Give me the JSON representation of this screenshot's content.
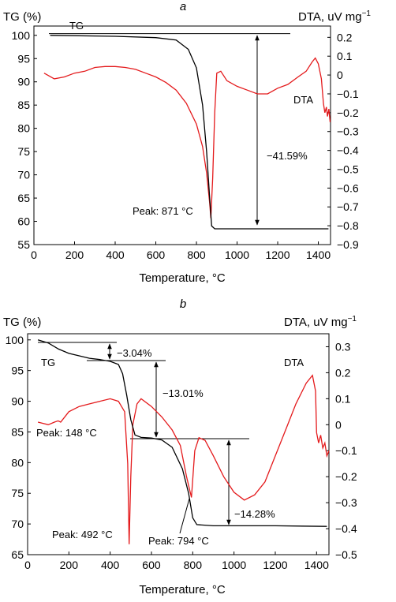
{
  "chart_data": [
    {
      "type": "line",
      "panel_label": "a",
      "xlabel": "Temperature, °C",
      "ylabel_left": "TG (%)",
      "ylabel_right": "DTA, uV mg",
      "ylabel_right_exp": "−1",
      "x_ticks": [
        "0",
        "200",
        "400",
        "600",
        "800",
        "1000",
        "1200",
        "1400"
      ],
      "y_left_ticks": [
        "100",
        "95",
        "90",
        "85",
        "80",
        "75",
        "70",
        "65",
        "60",
        "55"
      ],
      "y_right_ticks": [
        "0.2",
        "0.1",
        "0",
        "−0.1",
        "−0.2",
        "−0.3",
        "−0.4",
        "−0.5",
        "−0.6",
        "−0.7",
        "−0.8",
        "−0.9"
      ],
      "xlim": [
        0,
        1460
      ],
      "ylim_left": [
        55,
        102
      ],
      "ylim_right": [
        -0.9,
        0.26
      ],
      "series": [
        {
          "name": "TG",
          "axis": "left",
          "color": "#000000",
          "points": [
            [
              80,
              100
            ],
            [
              400,
              99.8
            ],
            [
              600,
              99.5
            ],
            [
              700,
              99
            ],
            [
              760,
              97
            ],
            [
              800,
              93
            ],
            [
              830,
              85
            ],
            [
              850,
              75
            ],
            [
              865,
              65
            ],
            [
              875,
              59
            ],
            [
              890,
              58.4
            ],
            [
              1000,
              58.4
            ],
            [
              1200,
              58.4
            ],
            [
              1450,
              58.4
            ]
          ]
        },
        {
          "name": "DTA",
          "axis": "right",
          "color": "#e41a1c",
          "points": [
            [
              50,
              0.01
            ],
            [
              100,
              -0.02
            ],
            [
              150,
              -0.01
            ],
            [
              200,
              0.01
            ],
            [
              250,
              0.02
            ],
            [
              300,
              0.04
            ],
            [
              350,
              0.045
            ],
            [
              400,
              0.045
            ],
            [
              450,
              0.04
            ],
            [
              500,
              0.03
            ],
            [
              550,
              0.01
            ],
            [
              600,
              -0.01
            ],
            [
              650,
              -0.04
            ],
            [
              700,
              -0.08
            ],
            [
              750,
              -0.15
            ],
            [
              800,
              -0.26
            ],
            [
              830,
              -0.38
            ],
            [
              850,
              -0.52
            ],
            [
              865,
              -0.68
            ],
            [
              871,
              -0.76
            ],
            [
              880,
              -0.55
            ],
            [
              890,
              -0.2
            ],
            [
              900,
              0.01
            ],
            [
              920,
              0.02
            ],
            [
              950,
              -0.03
            ],
            [
              1000,
              -0.06
            ],
            [
              1050,
              -0.08
            ],
            [
              1100,
              -0.1
            ],
            [
              1150,
              -0.1
            ],
            [
              1200,
              -0.07
            ],
            [
              1250,
              -0.05
            ],
            [
              1300,
              -0.01
            ],
            [
              1340,
              0.02
            ],
            [
              1370,
              0.07
            ],
            [
              1385,
              0.09
            ],
            [
              1400,
              0.06
            ],
            [
              1415,
              -0.02
            ],
            [
              1425,
              -0.15
            ],
            [
              1432,
              -0.2
            ],
            [
              1440,
              -0.17
            ],
            [
              1445,
              -0.22
            ],
            [
              1452,
              -0.18
            ],
            [
              1458,
              -0.25
            ]
          ]
        }
      ],
      "annotations": [
        {
          "text": "TG"
        },
        {
          "text": "DTA"
        },
        {
          "text": "Peak: 871 °C"
        },
        {
          "text": "−41.59%"
        }
      ]
    },
    {
      "type": "line",
      "panel_label": "b",
      "xlabel": "Temperature, °C",
      "ylabel_left": "TG (%)",
      "ylabel_right": "DTA, uV mg",
      "ylabel_right_exp": "−1",
      "x_ticks": [
        "0",
        "200",
        "400",
        "600",
        "800",
        "1000",
        "1200",
        "1400"
      ],
      "y_left_ticks": [
        "100",
        "95",
        "90",
        "85",
        "80",
        "75",
        "70",
        "65"
      ],
      "y_right_ticks": [
        "0.3",
        "0.2",
        "0.1",
        "0",
        "−0.1",
        "−0.2",
        "−0.3",
        "−0.4",
        "−0.5"
      ],
      "xlim": [
        0,
        1460
      ],
      "ylim_left": [
        65,
        101
      ],
      "ylim_right": [
        -0.5,
        0.35
      ],
      "series": [
        {
          "name": "TG",
          "axis": "left",
          "color": "#000000",
          "points": [
            [
              50,
              100
            ],
            [
              100,
              99.5
            ],
            [
              150,
              98.5
            ],
            [
              200,
              97.8
            ],
            [
              250,
              97.4
            ],
            [
              300,
              97
            ],
            [
              350,
              96.8
            ],
            [
              400,
              96.5
            ],
            [
              440,
              96
            ],
            [
              460,
              94.5
            ],
            [
              480,
              91
            ],
            [
              500,
              87
            ],
            [
              520,
              84.5
            ],
            [
              550,
              84.1
            ],
            [
              600,
              84
            ],
            [
              650,
              83.7
            ],
            [
              700,
              82.5
            ],
            [
              750,
              79
            ],
            [
              780,
              75
            ],
            [
              800,
              71
            ],
            [
              820,
              69.9
            ],
            [
              900,
              69.7
            ],
            [
              1000,
              69.7
            ],
            [
              1200,
              69.7
            ],
            [
              1450,
              69.6
            ]
          ]
        },
        {
          "name": "DTA",
          "axis": "right",
          "color": "#e41a1c",
          "points": [
            [
              50,
              0.01
            ],
            [
              100,
              0.0
            ],
            [
              130,
              0.01
            ],
            [
              148,
              0.015
            ],
            [
              160,
              0.01
            ],
            [
              200,
              0.05
            ],
            [
              250,
              0.07
            ],
            [
              300,
              0.08
            ],
            [
              350,
              0.09
            ],
            [
              400,
              0.1
            ],
            [
              440,
              0.09
            ],
            [
              470,
              0.05
            ],
            [
              485,
              -0.15
            ],
            [
              492,
              -0.46
            ],
            [
              500,
              -0.2
            ],
            [
              510,
              0.0
            ],
            [
              530,
              0.08
            ],
            [
              550,
              0.1
            ],
            [
              600,
              0.07
            ],
            [
              650,
              0.03
            ],
            [
              700,
              -0.02
            ],
            [
              740,
              -0.08
            ],
            [
              770,
              -0.2
            ],
            [
              794,
              -0.28
            ],
            [
              810,
              -0.1
            ],
            [
              830,
              -0.05
            ],
            [
              860,
              -0.06
            ],
            [
              900,
              -0.12
            ],
            [
              950,
              -0.2
            ],
            [
              1000,
              -0.26
            ],
            [
              1050,
              -0.29
            ],
            [
              1100,
              -0.27
            ],
            [
              1150,
              -0.22
            ],
            [
              1200,
              -0.12
            ],
            [
              1250,
              -0.02
            ],
            [
              1300,
              0.08
            ],
            [
              1350,
              0.16
            ],
            [
              1380,
              0.19
            ],
            [
              1395,
              0.13
            ],
            [
              1400,
              -0.03
            ],
            [
              1410,
              -0.07
            ],
            [
              1420,
              -0.04
            ],
            [
              1430,
              -0.09
            ],
            [
              1440,
              -0.07
            ],
            [
              1450,
              -0.12
            ],
            [
              1460,
              -0.1
            ]
          ]
        }
      ],
      "annotations": [
        {
          "text": "TG"
        },
        {
          "text": "DTA"
        },
        {
          "text": "Peak: 148 °C"
        },
        {
          "text": "Peak: 492 °C"
        },
        {
          "text": "Peak: 794 °C"
        },
        {
          "text": "−3.04%"
        },
        {
          "text": "−13.01%"
        },
        {
          "text": "−14.28%"
        }
      ]
    }
  ]
}
